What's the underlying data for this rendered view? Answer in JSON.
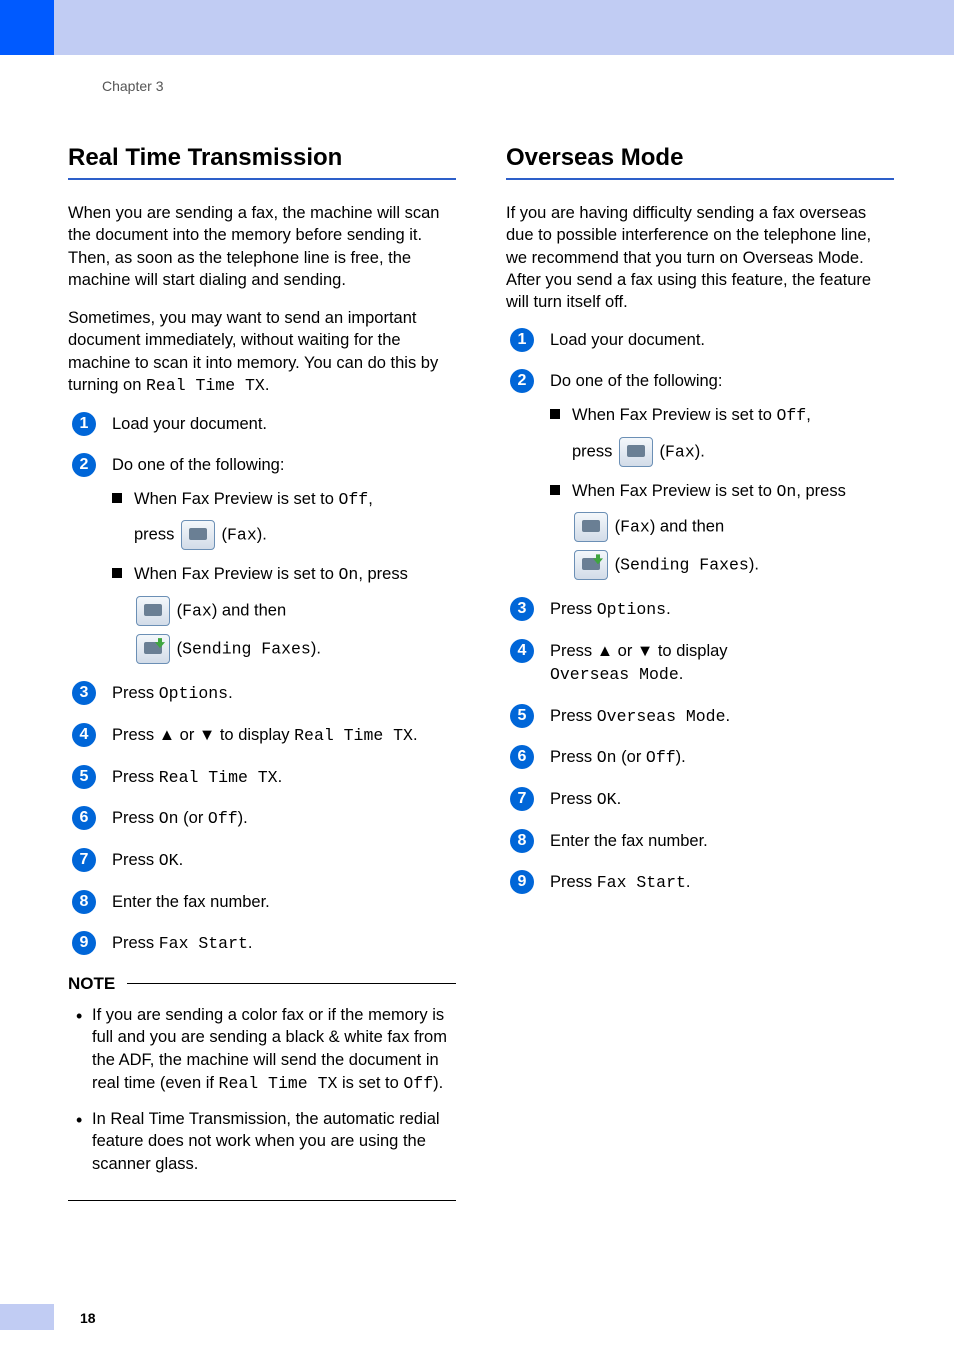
{
  "chapter_label": "Chapter 3",
  "page_number": "18",
  "colors": {
    "tab": "#005aff",
    "band": "#c1ccf3",
    "heading_rule": "#2d5fc9",
    "badge": "#0066d8"
  },
  "left": {
    "title": "Real Time Transmission",
    "para1": "When you are sending a fax, the machine will scan the document into the memory before sending it. Then, as soon as the telephone line is free, the machine will start dialing and sending.",
    "para2_a": "Sometimes, you may want to send an important document immediately, without waiting for the machine to scan it into memory. You can do this by turning on ",
    "para2_mono": "Real Time TX",
    "para2_b": ".",
    "steps": {
      "s1": "Load your document.",
      "s2": "Do one of the following:",
      "s2_b1_a": "When Fax Preview is set to ",
      "s2_b1_off": "Off",
      "s2_b1_b": ",",
      "s2_b1_press": "press ",
      "s2_b1_fax": "Fax",
      "s2_b2_a": "When Fax Preview is set to ",
      "s2_b2_on": "On",
      "s2_b2_b": ", press",
      "s2_b2_fax": "Fax",
      "s2_b2_and": " and then",
      "s2_b2_send": "Sending Faxes",
      "s3_a": "Press ",
      "s3_mono": "Options",
      "s4_a": "Press ▲ or ▼ to display ",
      "s4_mono": "Real Time TX",
      "s5_a": "Press ",
      "s5_mono": "Real Time TX",
      "s6_a": "Press ",
      "s6_on": "On",
      "s6_mid": " (or ",
      "s6_off": "Off",
      "s6_end": ").",
      "s7_a": "Press ",
      "s7_mono": "OK",
      "s8": "Enter the fax number.",
      "s9_a": "Press ",
      "s9_mono": "Fax Start"
    },
    "note_label": "NOTE",
    "note1_a": "If you are sending a color fax or if the memory is full and you are sending a black & white fax from the ADF, the machine will send the document in real time (even if ",
    "note1_mono1": "Real Time TX",
    "note1_b": " is set to ",
    "note1_mono2": "Off",
    "note1_c": ").",
    "note2": "In Real Time Transmission, the automatic redial feature does not work when you are using the scanner glass."
  },
  "right": {
    "title": "Overseas Mode",
    "para1": "If you are having difficulty sending a fax overseas due to possible interference on the telephone line, we recommend that you turn on Overseas Mode. After you send a fax using this feature, the feature will turn itself off.",
    "steps": {
      "s1": "Load your document.",
      "s2": "Do one of the following:",
      "s2_b1_a": "When Fax Preview is set to ",
      "s2_b1_off": "Off",
      "s2_b1_b": ",",
      "s2_b1_press": "press ",
      "s2_b1_fax": "Fax",
      "s2_b2_a": "When Fax Preview is set to ",
      "s2_b2_on": "On",
      "s2_b2_b": ", press",
      "s2_b2_fax": "Fax",
      "s2_b2_and": " and then",
      "s2_b2_send": "Sending Faxes",
      "s3_a": "Press ",
      "s3_mono": "Options",
      "s4_a": "Press ▲ or ▼ to display ",
      "s4_mono": "Overseas Mode",
      "s5_a": "Press ",
      "s5_mono": "Overseas Mode",
      "s6_a": "Press ",
      "s6_on": "On",
      "s6_mid": " (or ",
      "s6_off": "Off",
      "s6_end": ").",
      "s7_a": "Press ",
      "s7_mono": "OK",
      "s8": "Enter the fax number.",
      "s9_a": "Press ",
      "s9_mono": "Fax Start"
    }
  }
}
